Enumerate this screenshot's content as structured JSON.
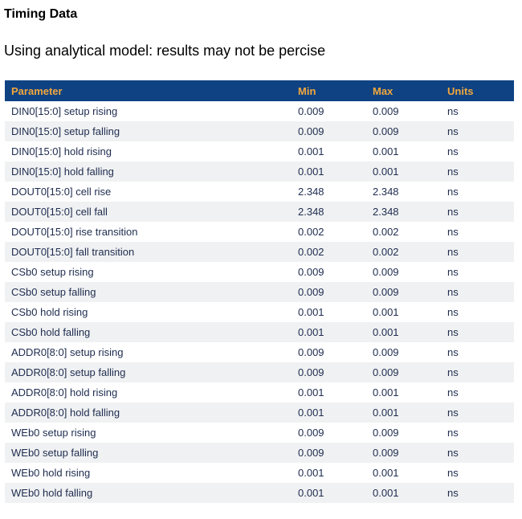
{
  "page": {
    "title": "Timing Data",
    "subtitle": "Using analytical model: results may not be percise"
  },
  "table": {
    "columns": [
      "Parameter",
      "Min",
      "Max",
      "Units"
    ],
    "rows": [
      {
        "param": "DIN0[15:0] setup rising",
        "min": "0.009",
        "max": "0.009",
        "units": "ns"
      },
      {
        "param": "DIN0[15:0] setup falling",
        "min": "0.009",
        "max": "0.009",
        "units": "ns"
      },
      {
        "param": "DIN0[15:0] hold rising",
        "min": "0.001",
        "max": "0.001",
        "units": "ns"
      },
      {
        "param": "DIN0[15:0] hold falling",
        "min": "0.001",
        "max": "0.001",
        "units": "ns"
      },
      {
        "param": "DOUT0[15:0] cell rise",
        "min": "2.348",
        "max": "2.348",
        "units": "ns"
      },
      {
        "param": "DOUT0[15:0] cell fall",
        "min": "2.348",
        "max": "2.348",
        "units": "ns"
      },
      {
        "param": "DOUT0[15:0] rise transition",
        "min": "0.002",
        "max": "0.002",
        "units": "ns"
      },
      {
        "param": "DOUT0[15:0] fall transition",
        "min": "0.002",
        "max": "0.002",
        "units": "ns"
      },
      {
        "param": "CSb0 setup rising",
        "min": "0.009",
        "max": "0.009",
        "units": "ns"
      },
      {
        "param": "CSb0 setup falling",
        "min": "0.009",
        "max": "0.009",
        "units": "ns"
      },
      {
        "param": "CSb0 hold rising",
        "min": "0.001",
        "max": "0.001",
        "units": "ns"
      },
      {
        "param": "CSb0 hold falling",
        "min": "0.001",
        "max": "0.001",
        "units": "ns"
      },
      {
        "param": "ADDR0[8:0] setup rising",
        "min": "0.009",
        "max": "0.009",
        "units": "ns"
      },
      {
        "param": "ADDR0[8:0] setup falling",
        "min": "0.009",
        "max": "0.009",
        "units": "ns"
      },
      {
        "param": "ADDR0[8:0] hold rising",
        "min": "0.001",
        "max": "0.001",
        "units": "ns"
      },
      {
        "param": "ADDR0[8:0] hold falling",
        "min": "0.001",
        "max": "0.001",
        "units": "ns"
      },
      {
        "param": "WEb0 setup rising",
        "min": "0.009",
        "max": "0.009",
        "units": "ns"
      },
      {
        "param": "WEb0 setup falling",
        "min": "0.009",
        "max": "0.009",
        "units": "ns"
      },
      {
        "param": "WEb0 hold rising",
        "min": "0.001",
        "max": "0.001",
        "units": "ns"
      },
      {
        "param": "WEb0 hold falling",
        "min": "0.001",
        "max": "0.001",
        "units": "ns"
      }
    ]
  },
  "colors": {
    "header_bg": "#0f4283",
    "header_text": "#f2a73d",
    "body_text": "#1e2c4f",
    "stripe_row": "#f0f1f2",
    "page_bg": "#ffffff"
  }
}
